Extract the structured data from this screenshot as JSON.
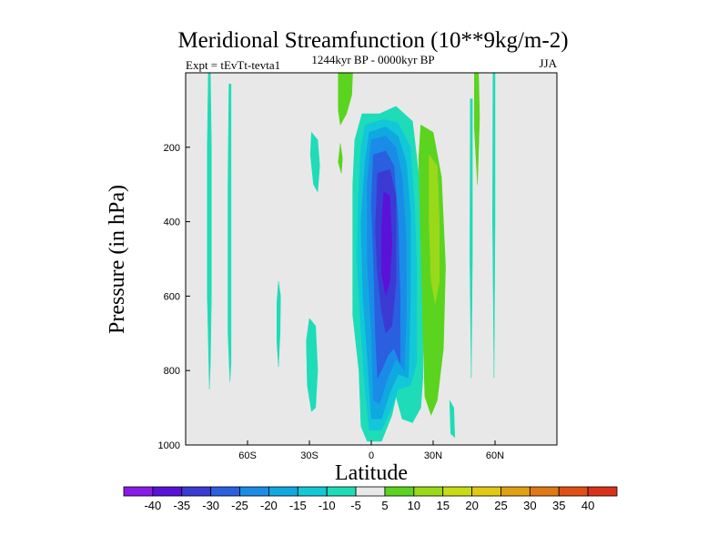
{
  "chart_data": {
    "type": "heatmap",
    "title": "Meridional Streamfunction (10**9kg/m-2)",
    "experiment": "Expt = tEvTt-tevta1",
    "subtitle": "1244kyr BP - 0000kyr BP",
    "season": "JJA",
    "xlabel": "Latitude",
    "ylabel": "Pressure (in hPa)",
    "xlim": [
      -90,
      90
    ],
    "ylim": [
      1000,
      0
    ],
    "x_ticks": [
      {
        "value": -60,
        "label": "60S"
      },
      {
        "value": -30,
        "label": "30S"
      },
      {
        "value": 0,
        "label": "0"
      },
      {
        "value": 30,
        "label": "30N"
      },
      {
        "value": 60,
        "label": "60N"
      }
    ],
    "y_ticks": [
      {
        "value": 200,
        "label": "200"
      },
      {
        "value": 400,
        "label": "400"
      },
      {
        "value": 600,
        "label": "600"
      },
      {
        "value": 800,
        "label": "800"
      },
      {
        "value": 1000,
        "label": "1000"
      }
    ],
    "background_color": "#e8e8e8",
    "colorbar": {
      "levels": [
        "-40",
        "-35",
        "-30",
        "-25",
        "-20",
        "-15",
        "-10",
        "-5",
        "5",
        "10",
        "15",
        "20",
        "25",
        "30",
        "35",
        "40"
      ],
      "colors": [
        "#8a1ae6",
        "#5a12d8",
        "#3b3bd4",
        "#2a5fe0",
        "#1a8ce8",
        "#10a8e0",
        "#12c8d8",
        "#1edcb8",
        "#e8e8e8",
        "#5ad41e",
        "#9ad81a",
        "#c8dc14",
        "#e0c814",
        "#e0a012",
        "#e07814",
        "#e05014",
        "#d8321c"
      ]
    },
    "regions": [
      {
        "name": "neg-5-outer",
        "value": -5,
        "color": "#1edcb8",
        "points": [
          [
            -4.5,
            110
          ],
          [
            4,
            110
          ],
          [
            12,
            90
          ],
          [
            20,
            130
          ],
          [
            24,
            320
          ],
          [
            25,
            500
          ],
          [
            25,
            820
          ],
          [
            24,
            900
          ],
          [
            20,
            940
          ],
          [
            15,
            930
          ],
          [
            12,
            870
          ],
          [
            10,
            920
          ],
          [
            5,
            990
          ],
          [
            -2,
            990
          ],
          [
            -5,
            950
          ],
          [
            -6,
            800
          ],
          [
            -9,
            650
          ],
          [
            -9,
            300
          ],
          [
            -8,
            180
          ]
        ]
      },
      {
        "name": "neg-10",
        "value": -10,
        "color": "#12c8d8",
        "points": [
          [
            -3,
            140
          ],
          [
            6,
            125
          ],
          [
            13,
            135
          ],
          [
            19,
            200
          ],
          [
            21,
            360
          ],
          [
            22,
            520
          ],
          [
            22,
            780
          ],
          [
            19,
            840
          ],
          [
            13,
            850
          ],
          [
            10,
            900
          ],
          [
            5,
            960
          ],
          [
            -1,
            960
          ],
          [
            -3,
            850
          ],
          [
            -5,
            700
          ],
          [
            -7,
            500
          ],
          [
            -6,
            300
          ],
          [
            -5,
            200
          ]
        ]
      },
      {
        "name": "neg-15",
        "value": -15,
        "color": "#10a8e0",
        "points": [
          [
            -1,
            160
          ],
          [
            7,
            145
          ],
          [
            13,
            170
          ],
          [
            17,
            240
          ],
          [
            19,
            380
          ],
          [
            19,
            600
          ],
          [
            18,
            820
          ],
          [
            13,
            810
          ],
          [
            9,
            860
          ],
          [
            5,
            930
          ],
          [
            0,
            930
          ],
          [
            -2,
            760
          ],
          [
            -4,
            600
          ],
          [
            -5,
            400
          ],
          [
            -3,
            240
          ]
        ]
      },
      {
        "name": "neg-20",
        "value": -20,
        "color": "#1a8ce8",
        "points": [
          [
            0,
            180
          ],
          [
            7,
            170
          ],
          [
            12,
            200
          ],
          [
            15,
            280
          ],
          [
            17,
            450
          ],
          [
            17,
            650
          ],
          [
            16,
            800
          ],
          [
            12,
            770
          ],
          [
            8,
            820
          ],
          [
            4,
            890
          ],
          [
            1,
            880
          ],
          [
            0,
            700
          ],
          [
            -2,
            500
          ],
          [
            -2,
            300
          ]
        ]
      },
      {
        "name": "neg-25",
        "value": -25,
        "color": "#2a5fe0",
        "points": [
          [
            1,
            220
          ],
          [
            7,
            210
          ],
          [
            11,
            250
          ],
          [
            13,
            400
          ],
          [
            14,
            600
          ],
          [
            14,
            780
          ],
          [
            11,
            740
          ],
          [
            8,
            760
          ],
          [
            5,
            800
          ],
          [
            3,
            820
          ],
          [
            2,
            700
          ],
          [
            1,
            500
          ],
          [
            0,
            350
          ]
        ]
      },
      {
        "name": "neg-30",
        "value": -30,
        "color": "#3b3bd4",
        "points": [
          [
            3,
            270
          ],
          [
            9,
            260
          ],
          [
            12,
            330
          ],
          [
            12,
            560
          ],
          [
            10,
            680
          ],
          [
            7,
            700
          ],
          [
            5,
            640
          ],
          [
            3,
            540
          ],
          [
            2,
            420
          ]
        ]
      },
      {
        "name": "neg-35",
        "value": -35,
        "color": "#5a12d8",
        "points": [
          [
            6,
            320
          ],
          [
            9,
            330
          ],
          [
            10,
            460
          ],
          [
            9,
            560
          ],
          [
            7,
            600
          ],
          [
            5,
            540
          ],
          [
            5,
            420
          ]
        ]
      },
      {
        "name": "pos-5-top",
        "value": 5,
        "color": "#5ad41e",
        "points": [
          [
            -16,
            0
          ],
          [
            -9,
            0
          ],
          [
            -9.5,
            60
          ],
          [
            -12,
            110
          ],
          [
            -15,
            140
          ],
          [
            -16,
            100
          ]
        ]
      },
      {
        "name": "pos-5-mid",
        "value": 5,
        "color": "#5ad41e",
        "points": [
          [
            -15,
            190
          ],
          [
            -14,
            230
          ],
          [
            -14.5,
            270
          ],
          [
            -16,
            240
          ]
        ]
      },
      {
        "name": "pos-5-nh",
        "value": 5,
        "color": "#5ad41e",
        "points": [
          [
            24,
            140
          ],
          [
            30,
            160
          ],
          [
            34,
            280
          ],
          [
            36,
            520
          ],
          [
            35,
            740
          ],
          [
            32,
            880
          ],
          [
            29,
            920
          ],
          [
            26,
            870
          ],
          [
            25,
            700
          ],
          [
            24,
            450
          ],
          [
            23,
            230
          ]
        ]
      },
      {
        "name": "pos-10-nh",
        "value": 10,
        "color": "#9ad81a",
        "points": [
          [
            28,
            220
          ],
          [
            32,
            250
          ],
          [
            33,
            400
          ],
          [
            33,
            560
          ],
          [
            31,
            620
          ],
          [
            29,
            560
          ],
          [
            28,
            400
          ]
        ]
      },
      {
        "name": "pos-5-nh-upper",
        "value": 5,
        "color": "#5ad41e",
        "points": [
          [
            50,
            0
          ],
          [
            52,
            0
          ],
          [
            52.5,
            120
          ],
          [
            51.5,
            300
          ],
          [
            50,
            150
          ]
        ]
      },
      {
        "name": "neg-5-sh-strip1",
        "value": -5,
        "color": "#1edcb8",
        "points": [
          [
            -79,
            0
          ],
          [
            -78,
            0
          ],
          [
            -77.5,
            200
          ],
          [
            -77.5,
            600
          ],
          [
            -78,
            780
          ],
          [
            -78.5,
            850
          ],
          [
            -79.5,
            600
          ],
          [
            -79.5,
            200
          ]
        ]
      },
      {
        "name": "neg-5-sh-strip2",
        "value": -5,
        "color": "#1edcb8",
        "points": [
          [
            -69,
            30
          ],
          [
            -68,
            30
          ],
          [
            -68,
            500
          ],
          [
            -68,
            780
          ],
          [
            -68.5,
            830
          ],
          [
            -69.5,
            700
          ],
          [
            -69.5,
            300
          ]
        ]
      },
      {
        "name": "neg-5-sh-50",
        "value": -5,
        "color": "#1edcb8",
        "points": [
          [
            -45,
            560
          ],
          [
            -44,
            600
          ],
          [
            -44.2,
            700
          ],
          [
            -45,
            790
          ],
          [
            -45.8,
            720
          ],
          [
            -45.8,
            620
          ]
        ]
      },
      {
        "name": "neg-5-sh-30-lower",
        "value": -5,
        "color": "#1edcb8",
        "points": [
          [
            -30,
            660
          ],
          [
            -27,
            680
          ],
          [
            -26,
            800
          ],
          [
            -27,
            900
          ],
          [
            -29,
            910
          ],
          [
            -31,
            840
          ],
          [
            -31.5,
            720
          ]
        ]
      },
      {
        "name": "neg-5-sh-30-upper",
        "value": -5,
        "color": "#1edcb8",
        "points": [
          [
            -29,
            160
          ],
          [
            -26,
            180
          ],
          [
            -25,
            250
          ],
          [
            -26,
            320
          ],
          [
            -28,
            300
          ],
          [
            -29.5,
            220
          ]
        ]
      },
      {
        "name": "neg-5-nh-lower",
        "value": -5,
        "color": "#1edcb8",
        "points": [
          [
            38,
            880
          ],
          [
            40,
            900
          ],
          [
            40.5,
            980
          ],
          [
            38.5,
            970
          ]
        ]
      },
      {
        "name": "neg-5-nh-strip-a",
        "value": -5,
        "color": "#1edcb8",
        "points": [
          [
            48,
            70
          ],
          [
            49,
            70
          ],
          [
            49,
            500
          ],
          [
            48.5,
            820
          ],
          [
            47.8,
            500
          ]
        ]
      },
      {
        "name": "neg-5-nh-strip-b",
        "value": -5,
        "color": "#1edcb8",
        "points": [
          [
            59,
            0
          ],
          [
            60,
            0
          ],
          [
            60,
            400
          ],
          [
            59.5,
            820
          ],
          [
            58.8,
            400
          ]
        ]
      }
    ]
  }
}
